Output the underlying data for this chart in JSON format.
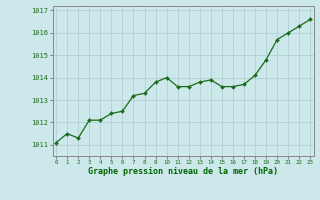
{
  "x": [
    0,
    1,
    2,
    3,
    4,
    5,
    6,
    7,
    8,
    9,
    10,
    11,
    12,
    13,
    14,
    15,
    16,
    17,
    18,
    19,
    20,
    21,
    22,
    23
  ],
  "y": [
    1011.1,
    1011.5,
    1011.3,
    1012.1,
    1012.1,
    1012.4,
    1012.5,
    1013.2,
    1013.3,
    1013.8,
    1014.0,
    1013.6,
    1013.6,
    1013.8,
    1013.9,
    1013.6,
    1013.6,
    1013.7,
    1014.1,
    1014.8,
    1015.7,
    1016.0,
    1016.3,
    1016.6
  ],
  "line_color": "#1a6b1a",
  "marker_color": "#1a6b1a",
  "bg_color": "#cce8ea",
  "grid_color": "#aacccc",
  "xlabel": "Graphe pression niveau de la mer (hPa)",
  "xlabel_color": "#006600",
  "ylim_min": 1010.5,
  "ylim_max": 1017.2,
  "xtick_labels": [
    "0",
    "1",
    "2",
    "3",
    "4",
    "5",
    "6",
    "7",
    "8",
    "9",
    "10",
    "11",
    "12",
    "13",
    "14",
    "15",
    "16",
    "17",
    "18",
    "19",
    "20",
    "21",
    "22",
    "23"
  ],
  "ytick_labels": [
    "1011",
    "1012",
    "1013",
    "1014",
    "1015",
    "1016",
    "1017"
  ],
  "ytick_vals": [
    1011,
    1012,
    1013,
    1014,
    1015,
    1016,
    1017
  ],
  "tick_color": "#1a6b1a",
  "spine_color": "#888888"
}
